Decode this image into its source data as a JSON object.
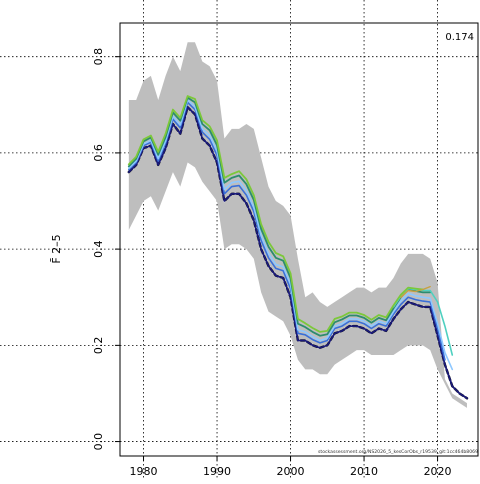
{
  "chart_data": {
    "type": "line",
    "ylabel": "F̄ 2–5",
    "corner_value": "0.174",
    "footnote": "stockassessment.org/NS2026_5_kesCorObs_r19539_git:1cc464b8069",
    "xlim": [
      1976.8,
      2025.5
    ],
    "ylim": [
      -0.03,
      0.87
    ],
    "xticks": [
      1980,
      1990,
      2000,
      2010,
      2020
    ],
    "yticks": [
      0.0,
      0.2,
      0.4,
      0.6,
      0.8
    ],
    "grid": true,
    "band": {
      "name": "confidence interval",
      "color": "#bebebe",
      "x": [
        1978,
        1979,
        1980,
        1981,
        1982,
        1983,
        1984,
        1985,
        1986,
        1987,
        1988,
        1989,
        1990,
        1991,
        1992,
        1993,
        1994,
        1995,
        1996,
        1997,
        1998,
        1999,
        2000,
        2001,
        2002,
        2003,
        2004,
        2005,
        2006,
        2007,
        2008,
        2009,
        2010,
        2011,
        2012,
        2013,
        2014,
        2015,
        2016,
        2017,
        2018,
        2019,
        2020,
        2021,
        2022,
        2023,
        2024
      ],
      "upper": [
        0.71,
        0.71,
        0.75,
        0.76,
        0.71,
        0.76,
        0.8,
        0.77,
        0.83,
        0.83,
        0.79,
        0.78,
        0.75,
        0.63,
        0.65,
        0.65,
        0.66,
        0.65,
        0.59,
        0.53,
        0.5,
        0.49,
        0.47,
        0.38,
        0.3,
        0.31,
        0.29,
        0.28,
        0.29,
        0.3,
        0.31,
        0.32,
        0.32,
        0.31,
        0.32,
        0.32,
        0.34,
        0.37,
        0.39,
        0.39,
        0.39,
        0.38,
        0.33,
        null,
        null,
        null,
        null
      ],
      "lower": [
        0.44,
        0.47,
        0.5,
        0.51,
        0.48,
        0.52,
        0.56,
        0.53,
        0.58,
        0.57,
        0.54,
        0.52,
        0.5,
        0.4,
        0.41,
        0.41,
        0.4,
        0.38,
        0.31,
        0.27,
        0.26,
        0.25,
        0.22,
        0.17,
        0.15,
        0.15,
        0.14,
        0.14,
        0.16,
        0.17,
        0.18,
        0.19,
        0.19,
        0.18,
        0.18,
        0.18,
        0.18,
        0.19,
        0.2,
        0.2,
        0.2,
        0.19,
        0.15,
        0.12,
        0.09,
        0.08,
        0.07
      ]
    },
    "series": [
      {
        "color": "#000000",
        "width": 2.4,
        "dash": "4,3",
        "x": [
          1978,
          1979,
          1980,
          1981,
          1982,
          1983,
          1984,
          1985,
          1986,
          1987,
          1988,
          1989,
          1990,
          1991,
          1992,
          1993,
          1994,
          1995,
          1996,
          1997,
          1998,
          1999,
          2000,
          2001,
          2002,
          2003,
          2004,
          2005,
          2006,
          2007,
          2008,
          2009,
          2010,
          2011,
          2012,
          2013,
          2014,
          2015,
          2016,
          2017,
          2018,
          2019,
          2020,
          2021,
          2022,
          2023,
          2024
        ],
        "values": [
          0.56,
          0.575,
          0.61,
          0.615,
          0.575,
          0.61,
          0.66,
          0.64,
          0.695,
          0.68,
          0.63,
          0.615,
          0.58,
          0.5,
          0.515,
          0.515,
          0.495,
          0.46,
          0.4,
          0.365,
          0.345,
          0.34,
          0.3,
          0.21,
          0.21,
          0.2,
          0.195,
          0.2,
          0.225,
          0.23,
          0.24,
          0.24,
          0.235,
          0.225,
          0.235,
          0.23,
          0.255,
          0.275,
          0.29,
          0.285,
          0.28,
          0.28,
          0.22,
          0.16,
          0.115,
          0.1,
          0.09
        ]
      },
      {
        "color": "#1a1a7a",
        "width": 1.8,
        "x": [
          1978,
          1979,
          1980,
          1981,
          1982,
          1983,
          1984,
          1985,
          1986,
          1987,
          1988,
          1989,
          1990,
          1991,
          1992,
          1993,
          1994,
          1995,
          1996,
          1997,
          1998,
          1999,
          2000,
          2001,
          2002,
          2003,
          2004,
          2005,
          2006,
          2007,
          2008,
          2009,
          2010,
          2011,
          2012,
          2013,
          2014,
          2015,
          2016,
          2017,
          2018,
          2019,
          2020,
          2021,
          2022,
          2023,
          2024
        ],
        "values": [
          0.56,
          0.575,
          0.61,
          0.615,
          0.575,
          0.61,
          0.66,
          0.64,
          0.695,
          0.68,
          0.63,
          0.615,
          0.58,
          0.5,
          0.515,
          0.515,
          0.495,
          0.46,
          0.4,
          0.365,
          0.345,
          0.34,
          0.3,
          0.21,
          0.21,
          0.2,
          0.195,
          0.2,
          0.225,
          0.23,
          0.24,
          0.24,
          0.235,
          0.225,
          0.235,
          0.23,
          0.255,
          0.275,
          0.29,
          0.285,
          0.28,
          0.28,
          0.22,
          0.16,
          0.115,
          0.1,
          0.09
        ]
      },
      {
        "color": "#3a6fd8",
        "width": 1.6,
        "x": [
          1978,
          1979,
          1980,
          1981,
          1982,
          1983,
          1984,
          1985,
          1986,
          1987,
          1988,
          1989,
          1990,
          1991,
          1992,
          1993,
          1994,
          1995,
          1996,
          1997,
          1998,
          1999,
          2000,
          2001,
          2002,
          2003,
          2004,
          2005,
          2006,
          2007,
          2008,
          2009,
          2010,
          2011,
          2012,
          2013,
          2014,
          2015,
          2016,
          2017,
          2018,
          2019,
          2020,
          2021
        ],
        "values": [
          0.565,
          0.58,
          0.615,
          0.622,
          0.583,
          0.62,
          0.67,
          0.652,
          0.705,
          0.69,
          0.643,
          0.628,
          0.595,
          0.515,
          0.53,
          0.532,
          0.512,
          0.478,
          0.418,
          0.382,
          0.36,
          0.355,
          0.318,
          0.225,
          0.222,
          0.212,
          0.205,
          0.21,
          0.235,
          0.24,
          0.25,
          0.25,
          0.245,
          0.235,
          0.245,
          0.24,
          0.265,
          0.285,
          0.3,
          0.295,
          0.292,
          0.29,
          0.235,
          0.17
        ]
      },
      {
        "color": "#8ec8ff",
        "width": 1.6,
        "x": [
          1978,
          1979,
          1980,
          1981,
          1982,
          1983,
          1984,
          1985,
          1986,
          1987,
          1988,
          1989,
          1990,
          1991,
          1992,
          1993,
          1994,
          1995,
          1996,
          1997,
          1998,
          1999,
          2000,
          2001,
          2002,
          2003,
          2004,
          2005,
          2006,
          2007,
          2008,
          2009,
          2010,
          2011,
          2012,
          2013,
          2014,
          2015,
          2016,
          2017,
          2018,
          2019,
          2020,
          2021,
          2022
        ],
        "values": [
          0.568,
          0.583,
          0.618,
          0.626,
          0.588,
          0.625,
          0.676,
          0.658,
          0.71,
          0.696,
          0.65,
          0.636,
          0.604,
          0.524,
          0.538,
          0.541,
          0.521,
          0.487,
          0.428,
          0.391,
          0.368,
          0.363,
          0.327,
          0.232,
          0.228,
          0.218,
          0.21,
          0.215,
          0.24,
          0.245,
          0.255,
          0.255,
          0.25,
          0.24,
          0.25,
          0.245,
          0.27,
          0.292,
          0.308,
          0.303,
          0.3,
          0.298,
          0.245,
          0.185,
          0.15
        ]
      },
      {
        "color": "#2c8c6e",
        "width": 1.8,
        "x": [
          1978,
          1979,
          1980,
          1981,
          1982,
          1983,
          1984,
          1985,
          1986,
          1987,
          1988,
          1989,
          1990,
          1991,
          1992,
          1993,
          1994,
          1995,
          1996,
          1997,
          1998,
          1999,
          2000,
          2001,
          2002,
          2003,
          2004,
          2005,
          2006,
          2007,
          2008,
          2009,
          2010,
          2011,
          2012,
          2013,
          2014,
          2015,
          2016,
          2017,
          2018,
          2019
        ],
        "values": [
          0.572,
          0.588,
          0.624,
          0.632,
          0.596,
          0.633,
          0.684,
          0.667,
          0.715,
          0.705,
          0.66,
          0.647,
          0.616,
          0.538,
          0.548,
          0.553,
          0.535,
          0.502,
          0.442,
          0.405,
          0.382,
          0.376,
          0.34,
          0.245,
          0.238,
          0.228,
          0.22,
          0.223,
          0.248,
          0.254,
          0.262,
          0.262,
          0.257,
          0.247,
          0.257,
          0.252,
          0.277,
          0.3,
          0.316,
          0.313,
          0.31,
          0.31
        ]
      },
      {
        "color": "#4fd0c0",
        "width": 1.6,
        "x": [
          2014,
          2015,
          2016,
          2017,
          2018,
          2019,
          2020,
          2021,
          2022
        ],
        "values": [
          0.28,
          0.302,
          0.318,
          0.316,
          0.314,
          0.314,
          0.29,
          0.24,
          0.18
        ]
      },
      {
        "color": "#7cc83a",
        "width": 1.8,
        "x": [
          1978,
          1979,
          1980,
          1981,
          1982,
          1983,
          1984,
          1985,
          1986,
          1987,
          1988,
          1989,
          1990,
          1991,
          1992,
          1993,
          1994,
          1995,
          1996,
          1997,
          1998,
          1999,
          2000,
          2001,
          2002,
          2003,
          2004,
          2005,
          2006,
          2007,
          2008,
          2009,
          2010,
          2011,
          2012,
          2013,
          2014,
          2015,
          2016,
          2017,
          2018
        ],
        "values": [
          0.576,
          0.592,
          0.628,
          0.636,
          0.602,
          0.64,
          0.69,
          0.673,
          0.718,
          0.712,
          0.668,
          0.655,
          0.626,
          0.548,
          0.556,
          0.562,
          0.545,
          0.512,
          0.452,
          0.415,
          0.392,
          0.385,
          0.35,
          0.255,
          0.246,
          0.236,
          0.228,
          0.23,
          0.255,
          0.26,
          0.268,
          0.268,
          0.263,
          0.253,
          0.263,
          0.258,
          0.283,
          0.305,
          0.32,
          0.318,
          0.316
        ]
      },
      {
        "color": "#c8a040",
        "width": 1.4,
        "x": [
          2015,
          2016,
          2017,
          2018,
          2019
        ],
        "values": [
          0.3,
          0.314,
          0.312,
          0.316,
          0.322
        ]
      }
    ]
  }
}
